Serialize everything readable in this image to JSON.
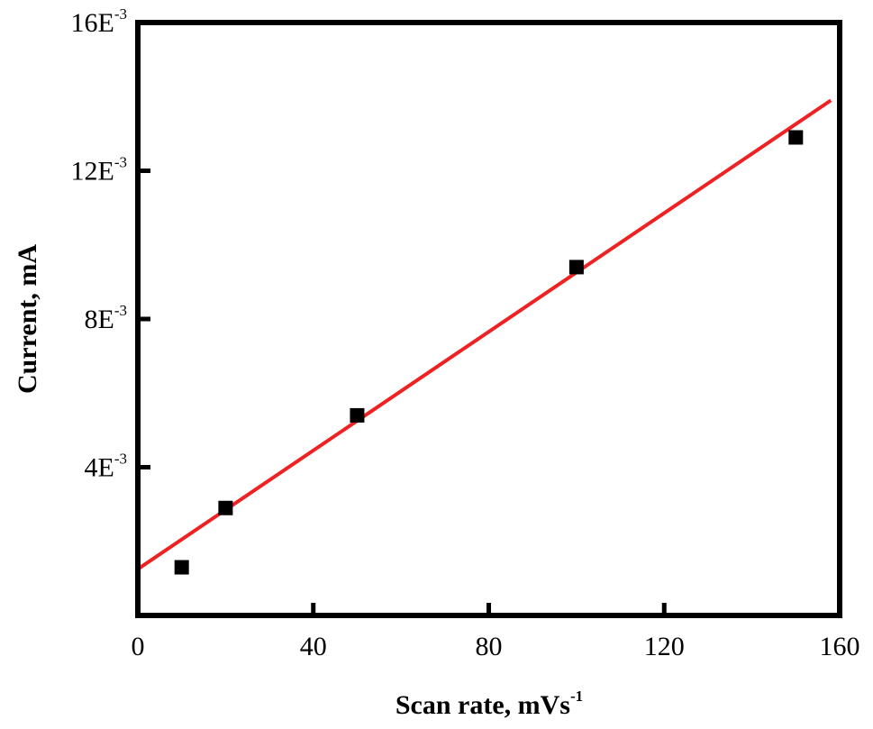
{
  "chart_data": {
    "type": "scatter",
    "title": "",
    "xlabel": "Scan rate, mVs",
    "xlabel_exponent": "-1",
    "ylabel": "Current, mA",
    "xlim": [
      0,
      160
    ],
    "ylim": [
      0,
      0.016
    ],
    "x_ticks": [
      {
        "value": 0,
        "label": "0"
      },
      {
        "value": 40,
        "label": "40"
      },
      {
        "value": 80,
        "label": "80"
      },
      {
        "value": 120,
        "label": "120"
      },
      {
        "value": 160,
        "label": "160"
      }
    ],
    "y_ticks": [
      {
        "value": 0.004,
        "base": "4E",
        "exponent": "-3"
      },
      {
        "value": 0.008,
        "base": "8E",
        "exponent": "-3"
      },
      {
        "value": 0.012,
        "base": "12E",
        "exponent": "-3"
      },
      {
        "value": 0.016,
        "base": "16E",
        "exponent": "-3"
      }
    ],
    "series": [
      {
        "marker": "square",
        "color": "#000000",
        "x": [
          10,
          20,
          50,
          100,
          150
        ],
        "y": [
          0.0013,
          0.0029,
          0.0054,
          0.0094,
          0.0129
        ]
      }
    ],
    "fit_line": {
      "color": "#ee2222",
      "x": [
        0,
        158
      ],
      "y": [
        0.00125,
        0.0139
      ]
    },
    "grid": false,
    "legend": "none"
  }
}
